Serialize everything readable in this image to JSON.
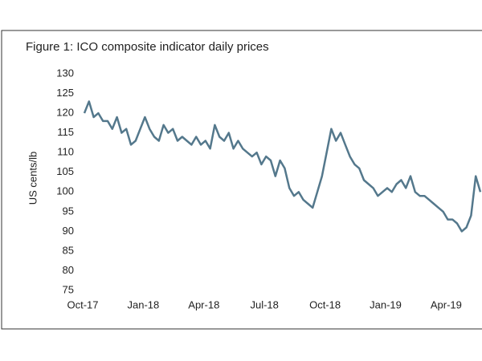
{
  "chart_data": {
    "type": "line",
    "title": "Figure 1: ICO composite indicator daily prices",
    "y_label": "US cents/lb",
    "categories": [
      "Oct-17",
      null,
      null,
      null,
      null,
      null,
      null,
      null,
      null,
      null,
      null,
      null,
      null,
      "Jan-18",
      null,
      null,
      null,
      null,
      null,
      null,
      null,
      null,
      null,
      null,
      null,
      null,
      "Apr-18",
      null,
      null,
      null,
      null,
      null,
      null,
      null,
      null,
      null,
      null,
      null,
      null,
      "Jul-18",
      null,
      null,
      null,
      null,
      null,
      null,
      null,
      null,
      null,
      null,
      null,
      null,
      "Oct-18",
      null,
      null,
      null,
      null,
      null,
      null,
      null,
      null,
      null,
      null,
      null,
      null,
      "Jan-19",
      null,
      null,
      null,
      null,
      null,
      null,
      null,
      null,
      null,
      null,
      null,
      null,
      "Apr-19",
      null,
      null,
      null,
      null,
      null,
      null,
      null
    ],
    "values": [
      120,
      123,
      119,
      120,
      118,
      118,
      116,
      119,
      115,
      116,
      112,
      113,
      116,
      119,
      116,
      114,
      113,
      117,
      115,
      116,
      113,
      114,
      113,
      112,
      114,
      112,
      113,
      111,
      117,
      114,
      113,
      115,
      111,
      113,
      111,
      110,
      109,
      110,
      107,
      109,
      108,
      104,
      108,
      106,
      101,
      99,
      100,
      98,
      97,
      96,
      100,
      104,
      110,
      116,
      113,
      115,
      112,
      109,
      107,
      106,
      103,
      102,
      101,
      99,
      100,
      101,
      100,
      102,
      103,
      101,
      104,
      100,
      99,
      99,
      98,
      97,
      96,
      95,
      93,
      93,
      92,
      90,
      91,
      94,
      104,
      100
    ],
    "color": "#54788c",
    "ylim": [
      75,
      130
    ],
    "yticks": [
      75,
      80,
      85,
      90,
      95,
      100,
      105,
      110,
      115,
      120,
      125,
      130
    ],
    "grid": false
  }
}
